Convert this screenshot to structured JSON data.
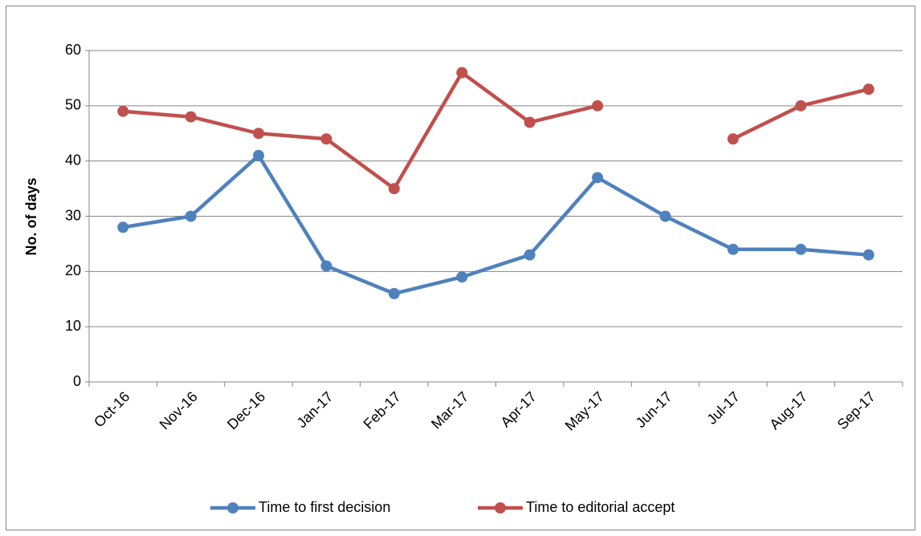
{
  "chart_data": {
    "type": "line",
    "y_label": "No. of days",
    "categories": [
      "Oct-16",
      "Nov-16",
      "Dec-16",
      "Jan-17",
      "Feb-17",
      "Mar-17",
      "Apr-17",
      "May-17",
      "Jun-17",
      "Jul-17",
      "Aug-17",
      "Sep-17"
    ],
    "series": [
      {
        "name": "Time to first decision",
        "color": "#4f81bd",
        "values": [
          28,
          30,
          41,
          21,
          16,
          19,
          23,
          37,
          30,
          24,
          24,
          23
        ]
      },
      {
        "name": "Time to editorial accept",
        "color": "#c0504d",
        "values": [
          49,
          48,
          45,
          44,
          35,
          56,
          47,
          50,
          null,
          44,
          50,
          53
        ]
      }
    ],
    "ylim": [
      0,
      60
    ],
    "yticks": [
      0,
      10,
      20,
      30,
      40,
      50,
      60
    ],
    "grid": true,
    "legend": "bottom"
  }
}
